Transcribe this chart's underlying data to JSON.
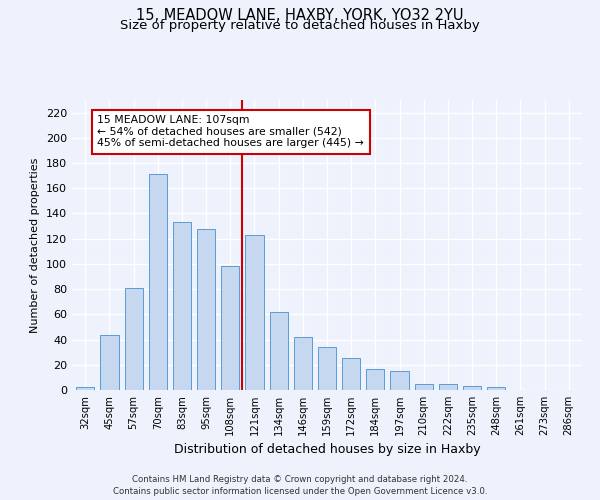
{
  "title_line1": "15, MEADOW LANE, HAXBY, YORK, YO32 2YU",
  "title_line2": "Size of property relative to detached houses in Haxby",
  "xlabel": "Distribution of detached houses by size in Haxby",
  "ylabel": "Number of detached properties",
  "categories": [
    "32sqm",
    "45sqm",
    "57sqm",
    "70sqm",
    "83sqm",
    "95sqm",
    "108sqm",
    "121sqm",
    "134sqm",
    "146sqm",
    "159sqm",
    "172sqm",
    "184sqm",
    "197sqm",
    "210sqm",
    "222sqm",
    "235sqm",
    "248sqm",
    "261sqm",
    "273sqm",
    "286sqm"
  ],
  "values": [
    2,
    44,
    81,
    171,
    133,
    128,
    98,
    123,
    62,
    42,
    34,
    25,
    17,
    15,
    5,
    5,
    3,
    2,
    0,
    0,
    0
  ],
  "bar_color": "#c5d8f0",
  "bar_edge_color": "#5b9bd5",
  "vline_x_index": 6,
  "vline_color": "#cc0000",
  "annotation_text": "15 MEADOW LANE: 107sqm\n← 54% of detached houses are smaller (542)\n45% of semi-detached houses are larger (445) →",
  "annotation_box_color": "#ffffff",
  "annotation_box_edge_color": "#cc0000",
  "ylim": [
    0,
    230
  ],
  "yticks": [
    0,
    20,
    40,
    60,
    80,
    100,
    120,
    140,
    160,
    180,
    200,
    220
  ],
  "footer_line1": "Contains HM Land Registry data © Crown copyright and database right 2024.",
  "footer_line2": "Contains public sector information licensed under the Open Government Licence v3.0.",
  "bg_color": "#eef2fc",
  "plot_bg_color": "#eef2fc",
  "grid_color": "#ffffff",
  "title_fontsize": 10.5,
  "subtitle_fontsize": 9.5,
  "bar_width": 0.75
}
